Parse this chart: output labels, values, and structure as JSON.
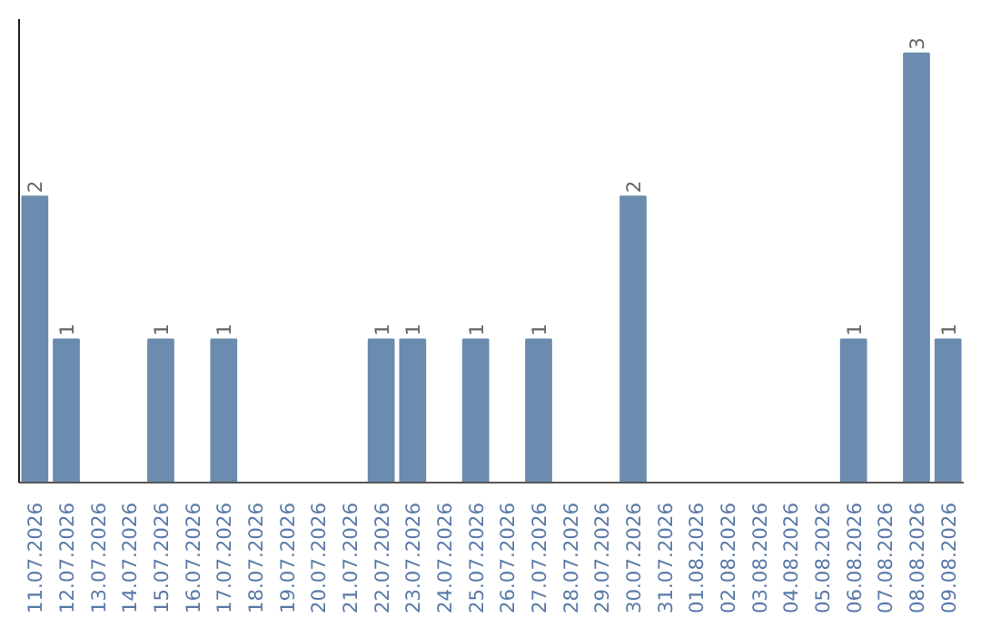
{
  "chart_data": {
    "type": "bar",
    "categories": [
      "11.07.2026",
      "12.07.2026",
      "13.07.2026",
      "14.07.2026",
      "15.07.2026",
      "16.07.2026",
      "17.07.2026",
      "18.07.2026",
      "19.07.2026",
      "20.07.2026",
      "21.07.2026",
      "22.07.2026",
      "23.07.2026",
      "24.07.2026",
      "25.07.2026",
      "26.07.2026",
      "27.07.2026",
      "28.07.2026",
      "29.07.2026",
      "30.07.2026",
      "31.07.2026",
      "01.08.2026",
      "02.08.2026",
      "03.08.2026",
      "04.08.2026",
      "05.08.2026",
      "06.08.2026",
      "07.08.2026",
      "08.08.2026",
      "09.08.2026"
    ],
    "values": [
      2,
      1,
      0,
      0,
      1,
      0,
      1,
      0,
      0,
      0,
      0,
      1,
      1,
      0,
      1,
      0,
      1,
      0,
      0,
      2,
      0,
      0,
      0,
      0,
      0,
      0,
      1,
      0,
      3,
      1
    ],
    "value_labels": [
      "2",
      "1",
      null,
      null,
      "1",
      null,
      "1",
      null,
      null,
      null,
      null,
      "1",
      "1",
      null,
      "1",
      null,
      "1",
      null,
      null,
      "2",
      null,
      null,
      null,
      null,
      null,
      null,
      "1",
      null,
      "3",
      "1"
    ],
    "color": "#6b8cae",
    "grid": false
  }
}
